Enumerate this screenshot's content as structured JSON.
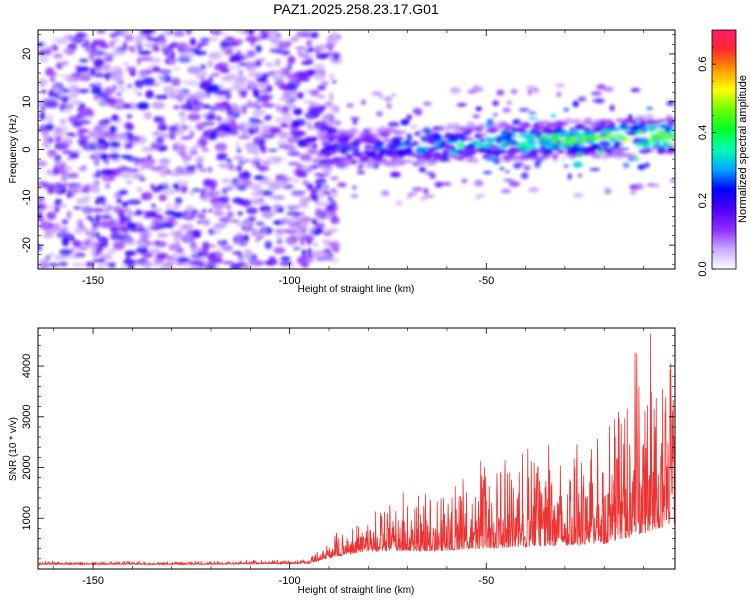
{
  "title": "PAZ1.2025.258.23.17.G01",
  "chart_data": [
    {
      "type": "heatmap",
      "xlabel": "Height of straight line (km)",
      "ylabel": "Frequency (Hz)",
      "xlim": [
        -164,
        -2
      ],
      "ylim": [
        -25,
        25
      ],
      "xticks": [
        {
          "value": -150,
          "label": "-150"
        },
        {
          "value": -100,
          "label": "-100"
        },
        {
          "value": -50,
          "label": "-50"
        }
      ],
      "yticks": [
        {
          "value": 20,
          "label": "20"
        },
        {
          "value": 10,
          "label": "10"
        },
        {
          "value": 0,
          "label": "0"
        },
        {
          "value": -10,
          "label": "-10"
        },
        {
          "value": -20,
          "label": "-20"
        }
      ],
      "colorbar": {
        "label": "Normalized spectral amplitude",
        "range": [
          0,
          0.7
        ],
        "ticks": [
          {
            "value": 0.0,
            "label": "0.0"
          },
          {
            "value": 0.2,
            "label": "0.2"
          },
          {
            "value": 0.4,
            "label": "0.4"
          },
          {
            "value": 0.6,
            "label": "0.6"
          }
        ],
        "colors": [
          "#ffffff",
          "#c9a8ff",
          "#8e2bff",
          "#4b00ff",
          "#0000ff",
          "#00a8ff",
          "#00ffb0",
          "#00ff2a",
          "#6cff00",
          "#ffff00",
          "#ff9a00",
          "#ff2a2a",
          "#ff1c6e"
        ]
      },
      "description_regions": {
        "noise_region_x": [
          -164,
          -92
        ],
        "signal_region_x": [
          -92,
          -2
        ],
        "signal_band_center_hz": [
          0,
          3
        ]
      }
    },
    {
      "type": "line",
      "xlabel": "Height of straight line (km)",
      "ylabel": "SNR (10 * v/v)",
      "xlim": [
        -164,
        -2
      ],
      "ylim": [
        0,
        4750
      ],
      "xticks": [
        {
          "value": -150,
          "label": "-150"
        },
        {
          "value": -100,
          "label": "-100"
        },
        {
          "value": -50,
          "label": "-50"
        }
      ],
      "yticks": [
        {
          "value": 1000,
          "label": "1000"
        },
        {
          "value": 2000,
          "label": "2000"
        },
        {
          "value": 3000,
          "label": "3000"
        },
        {
          "value": 4000,
          "label": "4000"
        }
      ],
      "line_color": "#ee3333",
      "envelope": [
        {
          "x": -164,
          "base": 90,
          "amp": 60
        },
        {
          "x": -120,
          "base": 90,
          "amp": 60
        },
        {
          "x": -95,
          "base": 110,
          "amp": 80
        },
        {
          "x": -88,
          "base": 250,
          "amp": 400
        },
        {
          "x": -80,
          "base": 350,
          "amp": 700
        },
        {
          "x": -65,
          "base": 350,
          "amp": 1100
        },
        {
          "x": -50,
          "base": 400,
          "amp": 1500
        },
        {
          "x": -35,
          "base": 450,
          "amp": 1900
        },
        {
          "x": -20,
          "base": 500,
          "amp": 2300
        },
        {
          "x": -10,
          "base": 700,
          "amp": 3600
        },
        {
          "x": -2,
          "base": 900,
          "amp": 3200
        }
      ]
    }
  ]
}
